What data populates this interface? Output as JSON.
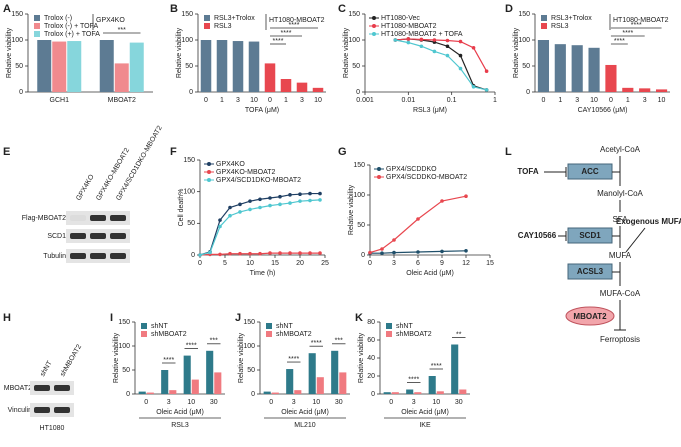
{
  "panels": [
    "A",
    "B",
    "C",
    "D",
    "E",
    "F",
    "G",
    "H",
    "I",
    "J",
    "K",
    "L"
  ],
  "chart_data": [
    {
      "type": "bar",
      "categories": [
        "GCH1",
        "MBOAT2"
      ],
      "ylabel": "Relative viability",
      "cell_line": "GPX4KO",
      "ylim": [
        0,
        150
      ],
      "yticks": [
        0,
        50,
        100,
        150
      ],
      "series": [
        {
          "name": "Trolox (-)",
          "color": "#5d7b93",
          "values": [
            100,
            100
          ]
        },
        {
          "name": "Trolox (-) + TOFA",
          "color": "#f08a8e",
          "values": [
            97,
            55
          ]
        },
        {
          "name": "Trolox (+) + TOFA",
          "color": "#86d6dc",
          "values": [
            98,
            95
          ]
        }
      ],
      "annotations": [
        "***"
      ]
    },
    {
      "type": "bar",
      "categories": [
        "0",
        "1",
        "3",
        "10",
        "0",
        "1",
        "3",
        "10"
      ],
      "xlabel": "TOFA (μM)",
      "ylabel": "Relative viability",
      "cell_line": "HT1080-MBOAT2",
      "ylim": [
        0,
        150
      ],
      "yticks": [
        0,
        50,
        100,
        150
      ],
      "series": [
        {
          "name": "RSL3+Trolox",
          "color": "#5d7b93",
          "values": [
            100,
            100,
            98,
            97,
            null,
            null,
            null,
            null
          ]
        },
        {
          "name": "RSL3",
          "color": "#e8474f",
          "values": [
            null,
            null,
            null,
            null,
            55,
            25,
            18,
            8
          ]
        }
      ],
      "annotations": [
        "****",
        "****",
        "****"
      ]
    },
    {
      "type": "line",
      "xlabel": "RSL3 (μM)",
      "ylabel": "Relative viability",
      "xlog": true,
      "xlim": [
        0.001,
        1
      ],
      "xticks": [
        0.001,
        0.01,
        0.1,
        1
      ],
      "ylim": [
        0,
        150
      ],
      "yticks": [
        0,
        50,
        100,
        150
      ],
      "x": [
        0.005,
        0.01,
        0.02,
        0.04,
        0.08,
        0.16,
        0.32,
        0.64
      ],
      "series": [
        {
          "name": "HT1080-Vec",
          "color": "#222222",
          "values": [
            100,
            102,
            100,
            96,
            88,
            70,
            12,
            4
          ]
        },
        {
          "name": "HT1080-MBOAT2",
          "color": "#e83c4b",
          "values": [
            100,
            102,
            101,
            100,
            99,
            97,
            85,
            40
          ]
        },
        {
          "name": "HT1080-MBOAT2 + TOFA",
          "color": "#4fc7d0",
          "values": [
            100,
            95,
            88,
            78,
            70,
            45,
            10,
            4
          ]
        }
      ]
    },
    {
      "type": "bar",
      "categories": [
        "0",
        "1",
        "3",
        "10",
        "0",
        "1",
        "3",
        "10"
      ],
      "xlabel": "CAY10566 (μM)",
      "ylabel": "Relative viability",
      "cell_line": "HT1080-MBOAT2",
      "ylim": [
        0,
        150
      ],
      "yticks": [
        0,
        50,
        100,
        150
      ],
      "series": [
        {
          "name": "RSL3+Trolox",
          "color": "#5d7b93",
          "values": [
            100,
            92,
            90,
            85,
            null,
            null,
            null,
            null
          ]
        },
        {
          "name": "RSL3",
          "color": "#e8474f",
          "values": [
            null,
            null,
            null,
            null,
            52,
            8,
            7,
            5
          ]
        }
      ],
      "annotations": [
        "****",
        "****",
        "****"
      ]
    },
    {
      "type": "line",
      "xlabel": "Time (h)",
      "ylabel": "Cell death%",
      "xlim": [
        0,
        25
      ],
      "xticks": [
        0,
        5,
        10,
        15,
        20,
        25
      ],
      "ylim": [
        0,
        150
      ],
      "yticks": [
        0,
        50,
        100,
        150
      ],
      "x": [
        0,
        2,
        4,
        6,
        8,
        10,
        12,
        14,
        16,
        18,
        20,
        22,
        24
      ],
      "series": [
        {
          "name": "GPX4KO",
          "color": "#1f3f63",
          "values": [
            0,
            5,
            55,
            75,
            80,
            85,
            88,
            90,
            92,
            95,
            96,
            97,
            97
          ]
        },
        {
          "name": "GPX4KO-MBOAT2",
          "color": "#e8474f",
          "values": [
            0,
            1,
            1,
            2,
            2,
            2,
            2,
            3,
            3,
            3,
            3,
            3,
            3
          ]
        },
        {
          "name": "GPX4/SCD1DKO-MBOAT2",
          "color": "#4fc7d0",
          "values": [
            0,
            4,
            45,
            62,
            68,
            72,
            75,
            78,
            80,
            82,
            85,
            86,
            87
          ]
        }
      ]
    },
    {
      "type": "line",
      "xlabel": "Oleic Acid (μM)",
      "ylabel": "Relative viability",
      "xlim": [
        0,
        15
      ],
      "xticks": [
        0,
        3,
        6,
        9,
        12,
        15
      ],
      "ylim": [
        0,
        150
      ],
      "yticks": [
        0,
        50,
        100,
        150
      ],
      "x": [
        0,
        1.5,
        3,
        6,
        9,
        12
      ],
      "series": [
        {
          "name": "GPX4/SCDDKO",
          "color": "#1f4f6a",
          "values": [
            3,
            3,
            4,
            5,
            6,
            7
          ]
        },
        {
          "name": "GPX4/SCDDKO-MBOAT2",
          "color": "#e8474f",
          "values": [
            4,
            10,
            25,
            60,
            90,
            98
          ]
        }
      ]
    },
    {
      "type": "bar",
      "categories": [
        "0",
        "3",
        "10",
        "30"
      ],
      "xlabel": "Oleic Acid (μM)",
      "ylabel": "Relative viability",
      "group_label": "RSL3",
      "ylim": [
        0,
        150
      ],
      "yticks": [
        0,
        50,
        100,
        150
      ],
      "series": [
        {
          "name": "shNT",
          "color": "#2e7a8a",
          "values": [
            5,
            50,
            80,
            90
          ]
        },
        {
          "name": "shMBOAT2",
          "color": "#f07a80",
          "values": [
            3,
            8,
            30,
            45
          ]
        }
      ],
      "annotations": [
        "****",
        "****",
        "***"
      ]
    },
    {
      "type": "bar",
      "categories": [
        "0",
        "3",
        "10",
        "30"
      ],
      "xlabel": "Oleic Acid (μM)",
      "ylabel": "Relative viability",
      "group_label": "ML210",
      "ylim": [
        0,
        150
      ],
      "yticks": [
        0,
        50,
        100,
        150
      ],
      "series": [
        {
          "name": "shNT",
          "color": "#2e7a8a",
          "values": [
            5,
            52,
            85,
            90
          ]
        },
        {
          "name": "shMBOAT2",
          "color": "#f07a80",
          "values": [
            3,
            8,
            35,
            45
          ]
        }
      ],
      "annotations": [
        "****",
        "****",
        "***"
      ]
    },
    {
      "type": "bar",
      "categories": [
        "0",
        "3",
        "10",
        "30"
      ],
      "xlabel": "Oleic Acid (μM)",
      "ylabel": "Relative viability",
      "group_label": "IKE",
      "ylim": [
        0,
        80
      ],
      "yticks": [
        0,
        20,
        40,
        60,
        80
      ],
      "series": [
        {
          "name": "shNT",
          "color": "#2e7a8a",
          "values": [
            2,
            5,
            20,
            55
          ]
        },
        {
          "name": "shMBOAT2",
          "color": "#f07a80",
          "values": [
            2,
            2,
            3,
            5
          ]
        }
      ],
      "annotations": [
        "****",
        "****",
        "**"
      ]
    }
  ],
  "blots": [
    {
      "lanes": [
        "GPX4KO",
        "GPX4KO-MBOAT2",
        "GPX4/SCD1DKO-MBOAT2"
      ],
      "rows": [
        "Flag-MBOAT2",
        "SCD1",
        "Tubulin"
      ]
    },
    {
      "lanes": [
        "shNT",
        "shMBOAT2"
      ],
      "rows": [
        "MBOAT2",
        "Vinculin"
      ],
      "cell_line": "HT1080"
    }
  ],
  "diagram": {
    "nodes": [
      "Acetyl-CoA",
      "ACC",
      "Manolyl-CoA",
      "SFA",
      "SCD1",
      "MUFA",
      "ACSL3",
      "MUFA-CoA",
      "MBOAT2",
      "Ferroptosis",
      "TOFA",
      "CAY10566",
      "Exogenous MUFA"
    ]
  }
}
